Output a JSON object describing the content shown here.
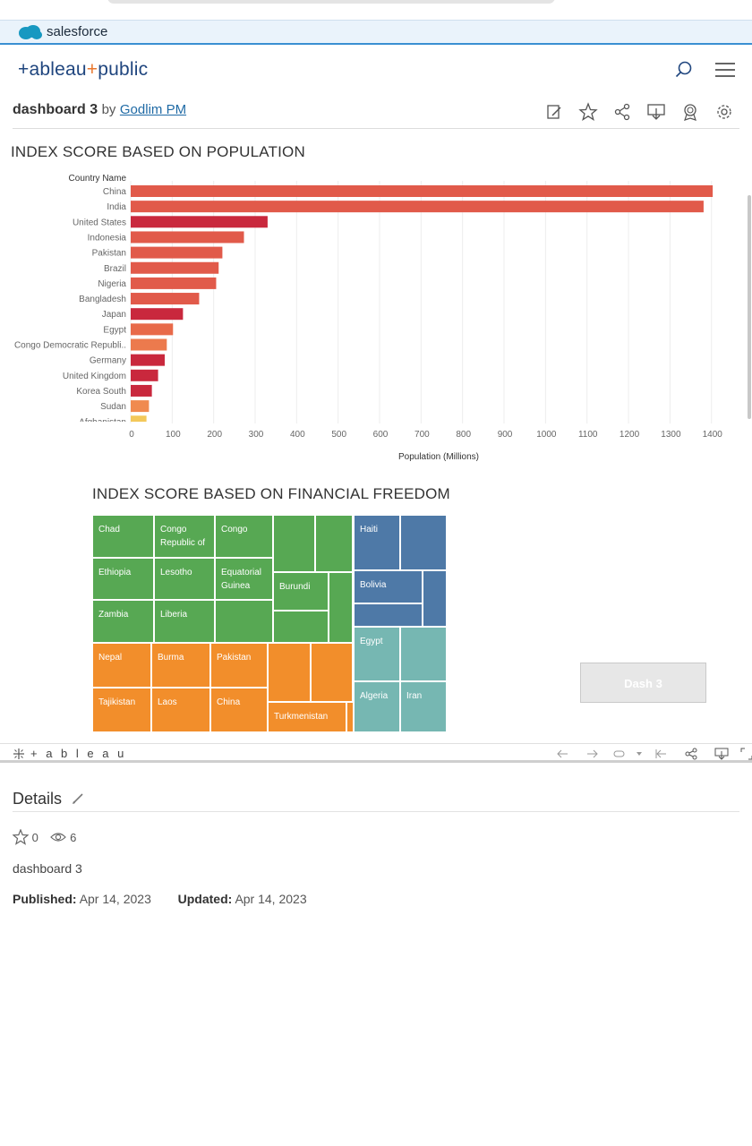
{
  "brand": {
    "salesforce": "salesforce",
    "tableau_public_a": "+ableau",
    "tableau_public_plus": "+",
    "tableau_public_b": "public"
  },
  "workbook": {
    "title": "dashboard 3",
    "by": "by",
    "author": "Godlim PM"
  },
  "toolbar_icons": [
    "edit-icon",
    "star-icon",
    "share-icon",
    "download-icon",
    "badge-icon",
    "settings-icon"
  ],
  "bar_chart": {
    "title": "INDEX SCORE BASED ON POPULATION",
    "axis_header": "Country Name",
    "xlabel": "Population (Millions)"
  },
  "chart_data": {
    "type": "bar",
    "orientation": "horizontal",
    "categories": [
      "China",
      "India",
      "United States",
      "Indonesia",
      "Pakistan",
      "Brazil",
      "Nigeria",
      "Bangladesh",
      "Japan",
      "Egypt",
      "Congo Democratic Republi..",
      "Germany",
      "United Kingdom",
      "Korea South",
      "Sudan",
      "Afghanistan"
    ],
    "values": [
      1403,
      1381,
      330,
      273,
      221,
      212,
      206,
      165,
      126,
      102,
      87,
      82,
      66,
      51,
      44,
      38
    ],
    "colors": [
      "#e15a4a",
      "#e15a4a",
      "#c9283d",
      "#e15a4a",
      "#e15a4a",
      "#e15a4a",
      "#e15a4a",
      "#e15a4a",
      "#c9283d",
      "#e86a4a",
      "#ec7a4d",
      "#c9283d",
      "#c9283d",
      "#c9283d",
      "#f08a4f",
      "#f3c85a"
    ],
    "xticks": [
      0,
      100,
      200,
      300,
      400,
      500,
      600,
      700,
      800,
      900,
      1000,
      1100,
      1200,
      1300,
      1400
    ],
    "xlim": [
      0,
      1420
    ],
    "xlabel": "Population (Millions)",
    "ylabel": "Country Name",
    "grid": true
  },
  "treemap": {
    "title": "INDEX SCORE BASED ON FINANCIAL FREEDOM",
    "labels": {
      "chad": "Chad",
      "congo_rep": "Congo Republic of",
      "congo": "Congo",
      "ethiopia": "Ethiopia",
      "lesotho": "Lesotho",
      "eq_guinea": "Equatorial Guinea",
      "burundi": "Burundi",
      "zambia": "Zambia",
      "liberia": "Liberia",
      "nepal": "Nepal",
      "burma": "Burma",
      "pakistan": "Pakistan",
      "tajikistan": "Tajikistan",
      "laos": "Laos",
      "china": "China",
      "turkmenistan": "Turkmenistan",
      "haiti": "Haiti",
      "bolivia": "Bolivia",
      "egypt": "Egypt",
      "algeria": "Algeria",
      "iran": "Iran"
    },
    "colors": {
      "green": "#57a853",
      "orange": "#f28e2b",
      "blue": "#4e79a7",
      "teal": "#76b7b2"
    }
  },
  "dash_button": "Dash 3",
  "footer": {
    "logo": "+ a b l e a u"
  },
  "details": {
    "heading": "Details",
    "favorites": "0",
    "views": "6",
    "description": "dashboard 3",
    "published_label": "Published:",
    "published_value": "Apr 14, 2023",
    "updated_label": "Updated:",
    "updated_value": "Apr 14, 2023"
  }
}
